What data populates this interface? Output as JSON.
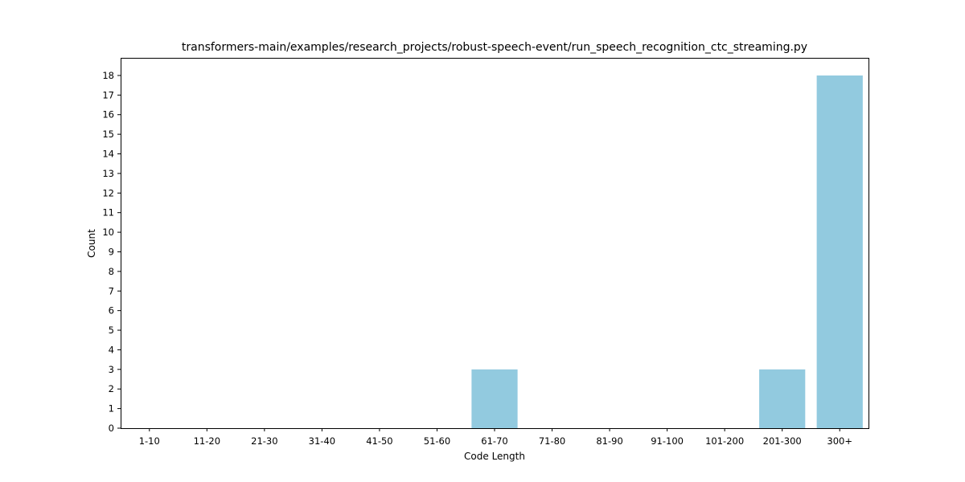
{
  "chart_data": {
    "type": "bar",
    "title": "transformers-main/examples/research_projects/robust-speech-event/run_speech_recognition_ctc_streaming.py",
    "xlabel": "Code Length",
    "ylabel": "Count",
    "categories": [
      "1-10",
      "11-20",
      "21-30",
      "31-40",
      "41-50",
      "51-60",
      "61-70",
      "71-80",
      "81-90",
      "91-100",
      "101-200",
      "201-300",
      "300+"
    ],
    "values": [
      0,
      0,
      0,
      0,
      0,
      0,
      3,
      0,
      0,
      0,
      0,
      3,
      18
    ],
    "ylim": [
      0,
      18.9
    ],
    "yticks": [
      0,
      1,
      2,
      3,
      4,
      5,
      6,
      7,
      8,
      9,
      10,
      11,
      12,
      13,
      14,
      15,
      16,
      17,
      18
    ],
    "bar_color": "#92cadf",
    "grid": false,
    "legend": "none"
  }
}
